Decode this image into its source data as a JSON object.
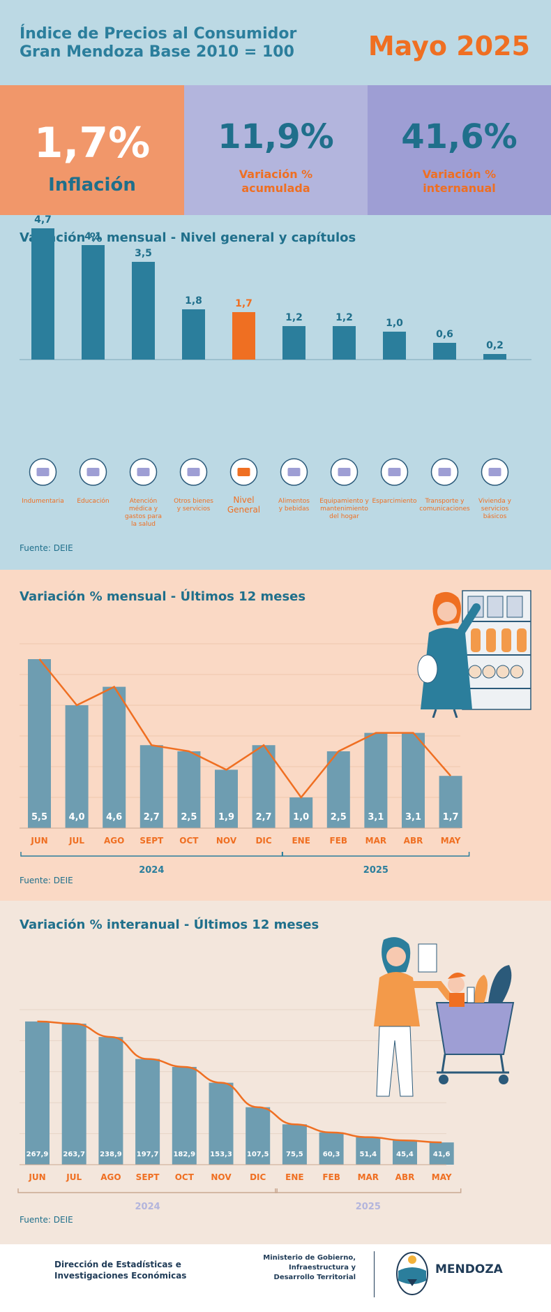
{
  "colors": {
    "teal": "#2b7e9c",
    "teal_dark": "#1f6f8b",
    "orange": "#ef6f22",
    "orange_box": "#f1976a",
    "lavender": "#b3b5dd",
    "purple": "#9e9ed4",
    "header_bg": "#bcd9e4",
    "sec2_bg": "#fad9c5",
    "sec3_bg": "#f3e6dc",
    "bar_grey": "#6e9db1"
  },
  "header": {
    "title_line1": "Índice de Precios al Consumidor",
    "title_line2": "Gran Mendoza Base 2010 = 100",
    "period": "Mayo 2025"
  },
  "kpis": [
    {
      "value": "1,7%",
      "label": "Inflación"
    },
    {
      "value": "11,9%",
      "label_line1": "Variación %",
      "label_line2": "acumulada"
    },
    {
      "value": "41,6%",
      "label_line1": "Variación %",
      "label_line2": "internanual"
    }
  ],
  "chart_data": [
    {
      "type": "bar",
      "title": "Variación % mensual - Nivel general y capítulos",
      "categories": [
        "Indumentaria",
        "Educación",
        "Atención médica y gastos para la salud",
        "Otros bienes y servicios",
        "Nivel General",
        "Alimentos y bebidas",
        "Equipamiento y mantenimiento del hogar",
        "Esparcimiento",
        "Transporte y comunicaciones",
        "Vivienda y servicios básicos"
      ],
      "category_lines": [
        [
          "Indumentaria"
        ],
        [
          "Educación"
        ],
        [
          "Atención",
          "médica y",
          "gastos para",
          "la salud"
        ],
        [
          "Otros bienes",
          "y servicios"
        ],
        [
          "Nivel",
          "General"
        ],
        [
          "Alimentos",
          "y bebidas"
        ],
        [
          "Equipamiento y",
          "mantenimiento",
          "del hogar"
        ],
        [
          "Esparcimiento"
        ],
        [
          "Transporte y",
          "comunicaciones"
        ],
        [
          "Vivienda y",
          "servicios",
          "básicos"
        ]
      ],
      "values": [
        4.7,
        4.1,
        3.5,
        1.8,
        1.7,
        1.2,
        1.2,
        1.0,
        0.6,
        0.2
      ],
      "value_labels": [
        "4,7",
        "4,1",
        "3,5",
        "1,8",
        "1,7",
        "1,2",
        "1,2",
        "1,0",
        "0,6",
        "0,2"
      ],
      "highlight_index": 4,
      "icons": [
        "tshirt-icon",
        "books-icon",
        "pills-icon",
        "scissors-icon",
        "cart-icon",
        "food-bag-icon",
        "washing-machine-icon",
        "popcorn-icon",
        "bus-icon",
        "lightbulb-icon"
      ],
      "ylim": [
        0,
        5
      ],
      "source": "Fuente: DEIE"
    },
    {
      "type": "bar",
      "title": "Variación % mensual - Últimos 12 meses",
      "categories": [
        "JUN",
        "JUL",
        "AGO",
        "SEPT",
        "OCT",
        "NOV",
        "DIC",
        "ENE",
        "FEB",
        "MAR",
        "ABR",
        "MAY"
      ],
      "values": [
        5.5,
        4.0,
        4.6,
        2.7,
        2.5,
        1.9,
        2.7,
        1.0,
        2.5,
        3.1,
        3.1,
        1.7
      ],
      "value_labels": [
        "5,5",
        "4,0",
        "4,6",
        "2,7",
        "2,5",
        "1,9",
        "2,7",
        "1,0",
        "2,5",
        "3,1",
        "3,1",
        "1,7"
      ],
      "line_overlay": true,
      "year_groups": [
        {
          "label": "2024",
          "count": 7
        },
        {
          "label": "2025",
          "count": 5
        }
      ],
      "ylim": [
        0,
        6
      ],
      "source": "Fuente: DEIE"
    },
    {
      "type": "bar",
      "title": "Variación % interanual - Últimos 12 meses",
      "categories": [
        "JUN",
        "JUL",
        "AGO",
        "SEPT",
        "OCT",
        "NOV",
        "DIC",
        "ENE",
        "FEB",
        "MAR",
        "ABR",
        "MAY"
      ],
      "values": [
        267.9,
        263.7,
        238.9,
        197.7,
        182.9,
        153.3,
        107.5,
        75.5,
        60.3,
        51.4,
        45.4,
        41.6
      ],
      "value_labels": [
        "267,9",
        "263,7",
        "238,9",
        "197,7",
        "182,9",
        "153,3",
        "107,5",
        "75,5",
        "60,3",
        "51,4",
        "45,4",
        "41,6"
      ],
      "line_overlay": true,
      "year_groups": [
        {
          "label": "2024",
          "count": 7
        },
        {
          "label": "2025",
          "count": 5
        }
      ],
      "ylim": [
        0,
        290
      ],
      "source": "Fuente: DEIE"
    }
  ],
  "footer": {
    "org_line1": "Dirección de Estadísticas e",
    "org_line2": "Investigaciones Económicas",
    "ministry_line1": "Ministerio de Gobierno,",
    "ministry_line2": "Infraestructura y",
    "ministry_line3": "Desarrollo Territorial",
    "brand": "MENDOZA"
  }
}
